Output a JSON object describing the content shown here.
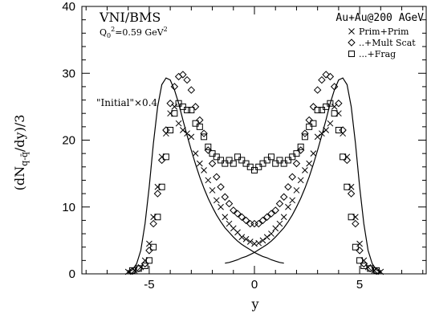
{
  "chart_data": {
    "type": "scatter",
    "title": "",
    "xlabel": "y",
    "ylabel": "(dN_{q-q̄}/dy)/3",
    "xlim": [
      -8.2,
      8.2
    ],
    "ylim": [
      0,
      40
    ],
    "x_ticks": [
      "-5",
      "0",
      "5"
    ],
    "x_tick_values": [
      -5,
      0,
      5
    ],
    "y_ticks": [
      "0",
      "10",
      "20",
      "30",
      "40"
    ],
    "y_tick_values": [
      0,
      10,
      20,
      30,
      40
    ],
    "annotations": {
      "model": "VNI/BMS",
      "q0": "Q",
      "q0_sub": "0",
      "q0_rest": "=0.59 GeV",
      "q0_sup": "2",
      "system": "Au+Au@200 AGeV",
      "initial": "\"Initial\"×0.4"
    },
    "legend": {
      "placement": "top-right",
      "entries": [
        {
          "label": "Prim+Prim",
          "marker": "cross"
        },
        {
          "label": "..+Mult Scat",
          "marker": "diamond"
        },
        {
          "label": "...+Frag",
          "marker": "square"
        }
      ]
    },
    "series": [
      {
        "name": "Prim+Prim",
        "marker": "cross",
        "x": [
          -6.0,
          -5.7,
          -5.4,
          -5.2,
          -5.0,
          -4.8,
          -4.6,
          -4.4,
          -4.2,
          -4.0,
          -3.8,
          -3.6,
          -3.4,
          -3.2,
          -3.0,
          -2.8,
          -2.6,
          -2.4,
          -2.2,
          -2.0,
          -1.8,
          -1.6,
          -1.4,
          -1.2,
          -1.0,
          -0.8,
          -0.6,
          -0.4,
          -0.2,
          0.0,
          0.2,
          0.4,
          0.6,
          0.8,
          1.0,
          1.2,
          1.4,
          1.6,
          1.8,
          2.0,
          2.2,
          2.4,
          2.6,
          2.8,
          3.0,
          3.2,
          3.4,
          3.6,
          3.8,
          4.0,
          4.2,
          4.4,
          4.6,
          4.8,
          5.0,
          5.2,
          5.4,
          5.7,
          6.0
        ],
        "y": [
          0.3,
          0.5,
          1.0,
          2.0,
          4.5,
          8.5,
          13.0,
          17.5,
          21.0,
          24.0,
          25.0,
          22.5,
          21.5,
          21.0,
          20.5,
          18.0,
          16.5,
          15.5,
          14.0,
          12.5,
          11.0,
          10.0,
          8.5,
          7.5,
          6.8,
          6.2,
          5.5,
          5.2,
          4.8,
          4.5,
          4.6,
          5.0,
          5.5,
          6.0,
          6.8,
          7.5,
          8.5,
          10.0,
          11.0,
          12.5,
          14.0,
          15.5,
          16.5,
          18.0,
          20.5,
          21.0,
          21.5,
          22.5,
          25.0,
          24.0,
          21.0,
          17.5,
          13.0,
          8.5,
          4.5,
          2.0,
          1.0,
          0.5,
          0.3
        ]
      },
      {
        "name": "..+Mult Scat",
        "marker": "diamond",
        "x": [
          -5.8,
          -5.5,
          -5.2,
          -5.0,
          -4.8,
          -4.6,
          -4.4,
          -4.2,
          -4.0,
          -3.8,
          -3.6,
          -3.4,
          -3.2,
          -3.0,
          -2.8,
          -2.6,
          -2.4,
          -2.2,
          -2.0,
          -1.8,
          -1.6,
          -1.4,
          -1.2,
          -1.0,
          -0.8,
          -0.6,
          -0.4,
          -0.2,
          0.0,
          0.2,
          0.4,
          0.6,
          0.8,
          1.0,
          1.2,
          1.4,
          1.6,
          1.8,
          2.0,
          2.2,
          2.4,
          2.6,
          2.8,
          3.0,
          3.2,
          3.4,
          3.6,
          3.8,
          4.0,
          4.2,
          4.4,
          4.6,
          4.8,
          5.0,
          5.2,
          5.5,
          5.8
        ],
        "y": [
          0.4,
          0.8,
          1.5,
          3.5,
          7.5,
          12.0,
          17.0,
          21.5,
          25.5,
          28.0,
          29.5,
          29.8,
          29.0,
          27.5,
          25.0,
          23.0,
          21.0,
          18.5,
          16.5,
          14.5,
          13.0,
          11.5,
          10.5,
          9.5,
          9.0,
          8.5,
          8.0,
          7.5,
          7.5,
          7.5,
          8.0,
          8.5,
          9.0,
          9.5,
          10.5,
          11.5,
          13.0,
          14.5,
          16.5,
          18.5,
          21.0,
          23.0,
          25.0,
          27.5,
          29.0,
          29.8,
          29.5,
          28.0,
          25.5,
          21.5,
          17.0,
          12.0,
          7.5,
          3.5,
          1.5,
          0.8,
          0.4
        ]
      },
      {
        "name": "...+Frag",
        "marker": "square",
        "x": [
          -5.8,
          -5.5,
          -5.2,
          -5.0,
          -4.8,
          -4.6,
          -4.4,
          -4.2,
          -4.0,
          -3.8,
          -3.6,
          -3.4,
          -3.2,
          -3.0,
          -2.8,
          -2.6,
          -2.4,
          -2.2,
          -2.0,
          -1.8,
          -1.6,
          -1.4,
          -1.2,
          -1.0,
          -0.8,
          -0.6,
          -0.4,
          -0.2,
          0.0,
          0.2,
          0.4,
          0.6,
          0.8,
          1.0,
          1.2,
          1.4,
          1.6,
          1.8,
          2.0,
          2.2,
          2.4,
          2.6,
          2.8,
          3.0,
          3.2,
          3.4,
          3.6,
          3.8,
          4.0,
          4.2,
          4.4,
          4.6,
          4.8,
          5.0,
          5.2,
          5.5,
          5.8
        ],
        "y": [
          0.5,
          0.8,
          1.2,
          2.0,
          4.0,
          8.5,
          13.0,
          17.5,
          21.5,
          24.0,
          25.5,
          25.0,
          24.5,
          24.5,
          22.5,
          22.0,
          20.5,
          19.0,
          18.0,
          17.5,
          17.0,
          16.5,
          17.0,
          16.5,
          17.5,
          17.0,
          16.5,
          16.0,
          15.5,
          16.0,
          16.5,
          17.0,
          17.5,
          16.5,
          17.0,
          16.5,
          17.0,
          17.5,
          18.0,
          19.0,
          20.5,
          22.0,
          22.5,
          24.5,
          24.5,
          25.0,
          25.5,
          24.0,
          21.5,
          17.5,
          13.0,
          8.5,
          4.0,
          2.0,
          1.2,
          0.8,
          0.5
        ]
      }
    ],
    "curves": [
      {
        "name": "\"Initial\"×0.4",
        "x": [
          -6.0,
          -5.8,
          -5.6,
          -5.4,
          -5.2,
          -5.0,
          -4.8,
          -4.6,
          -4.4,
          -4.2,
          -4.0,
          -3.8,
          -3.6,
          -3.4,
          -3.2,
          -3.0,
          -2.8,
          -2.6,
          -2.4,
          -2.2,
          -2.0,
          -1.8,
          -1.6,
          -1.4,
          -1.2,
          -1.0,
          -0.8,
          -0.6,
          -0.4,
          -0.2,
          0.0,
          0.2,
          0.4,
          0.6,
          0.8,
          1.0,
          1.2,
          1.4
        ],
        "y": [
          0.2,
          0.6,
          1.5,
          3.5,
          7.5,
          13.0,
          19.5,
          25.0,
          28.3,
          29.3,
          29.0,
          27.5,
          25.5,
          23.0,
          20.7,
          18.5,
          16.4,
          14.5,
          12.8,
          11.3,
          10.0,
          8.8,
          7.8,
          6.9,
          6.2,
          5.5,
          4.9,
          4.4,
          4.0,
          3.6,
          3.2,
          2.9,
          2.6,
          2.4,
          2.1,
          1.9,
          1.7,
          1.6
        ]
      },
      {
        "name": "",
        "x": [
          -1.4,
          -1.2,
          -1.0,
          -0.8,
          -0.6,
          -0.4,
          -0.2,
          0.0,
          0.2,
          0.4,
          0.6,
          0.8,
          1.0,
          1.2,
          1.4,
          1.6,
          1.8,
          2.0,
          2.2,
          2.4,
          2.6,
          2.8,
          3.0,
          3.2,
          3.4,
          3.6,
          3.8,
          4.0,
          4.2,
          4.4,
          4.6,
          4.8,
          5.0,
          5.2,
          5.4,
          5.6,
          5.8,
          6.0
        ],
        "y": [
          1.6,
          1.7,
          1.9,
          2.1,
          2.4,
          2.6,
          2.9,
          3.2,
          3.6,
          4.0,
          4.4,
          4.9,
          5.5,
          6.2,
          6.9,
          7.8,
          8.8,
          10.0,
          11.3,
          12.8,
          14.5,
          16.4,
          18.5,
          20.7,
          23.0,
          25.5,
          27.5,
          29.0,
          29.3,
          28.3,
          25.0,
          19.5,
          13.0,
          7.5,
          3.5,
          1.5,
          0.6,
          0.2
        ]
      }
    ]
  }
}
